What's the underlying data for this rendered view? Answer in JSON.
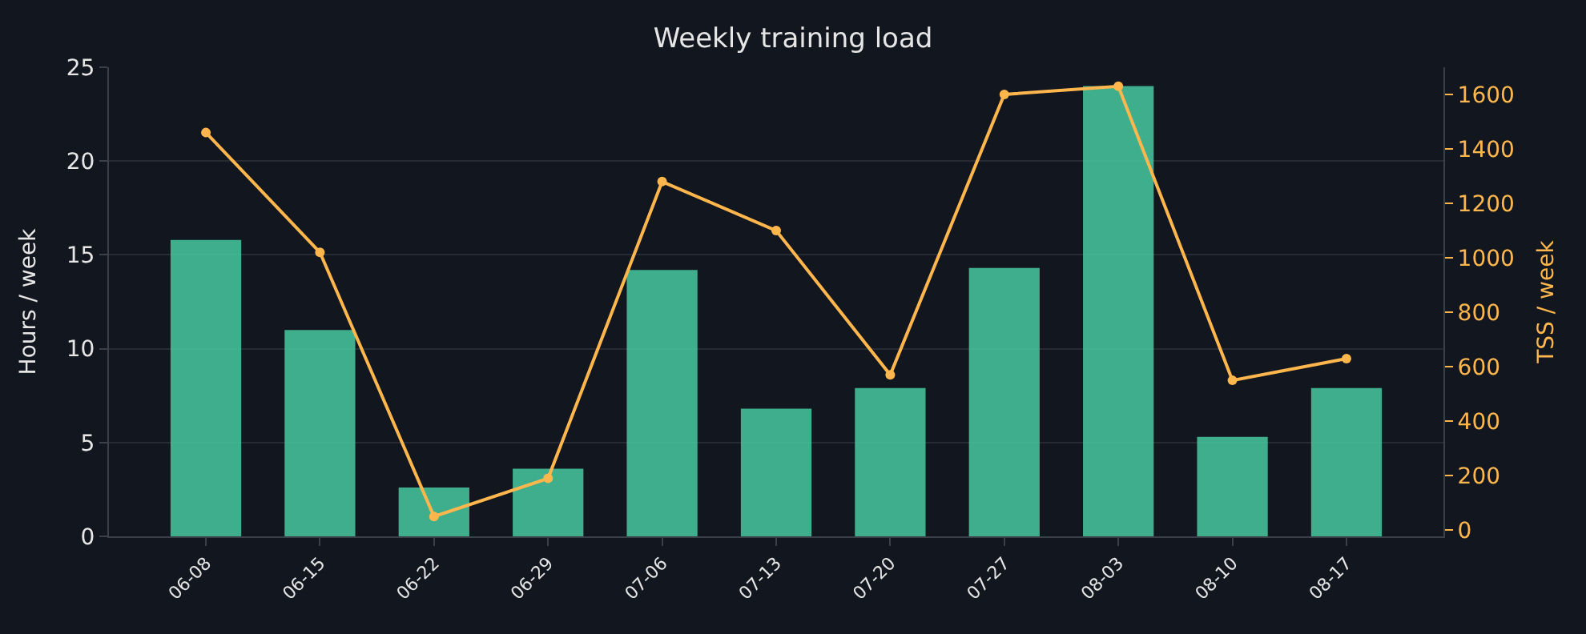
{
  "chart_data": {
    "type": "bar",
    "title": "Weekly training load",
    "ylabel": "Hours / week",
    "y2label": "TSS / week",
    "categories": [
      "06-08",
      "06-15",
      "06-22",
      "06-29",
      "07-06",
      "07-13",
      "07-20",
      "07-27",
      "08-03",
      "08-10",
      "08-17"
    ],
    "series": [
      {
        "color": "#48c9a0",
        "values": [
          15.8,
          11.0,
          2.6,
          3.6,
          14.2,
          6.8,
          7.9,
          14.3,
          24.0,
          5.3,
          7.9
        ]
      },
      {
        "type": "line",
        "axis": "y2",
        "color": "#ffb74d",
        "marker": "circle",
        "line_style": "solid",
        "values": [
          1460,
          1020,
          50,
          190,
          1280,
          1100,
          570,
          1600,
          1630,
          550,
          630
        ]
      }
    ],
    "ylim": [
      0,
      25
    ],
    "yticks": [
      0,
      5,
      10,
      15,
      20,
      25
    ],
    "y2lim": [
      -23,
      1700
    ],
    "y2ticks": [
      0,
      200,
      400,
      600,
      800,
      1000,
      1200,
      1400,
      1600
    ],
    "grid": "y"
  }
}
